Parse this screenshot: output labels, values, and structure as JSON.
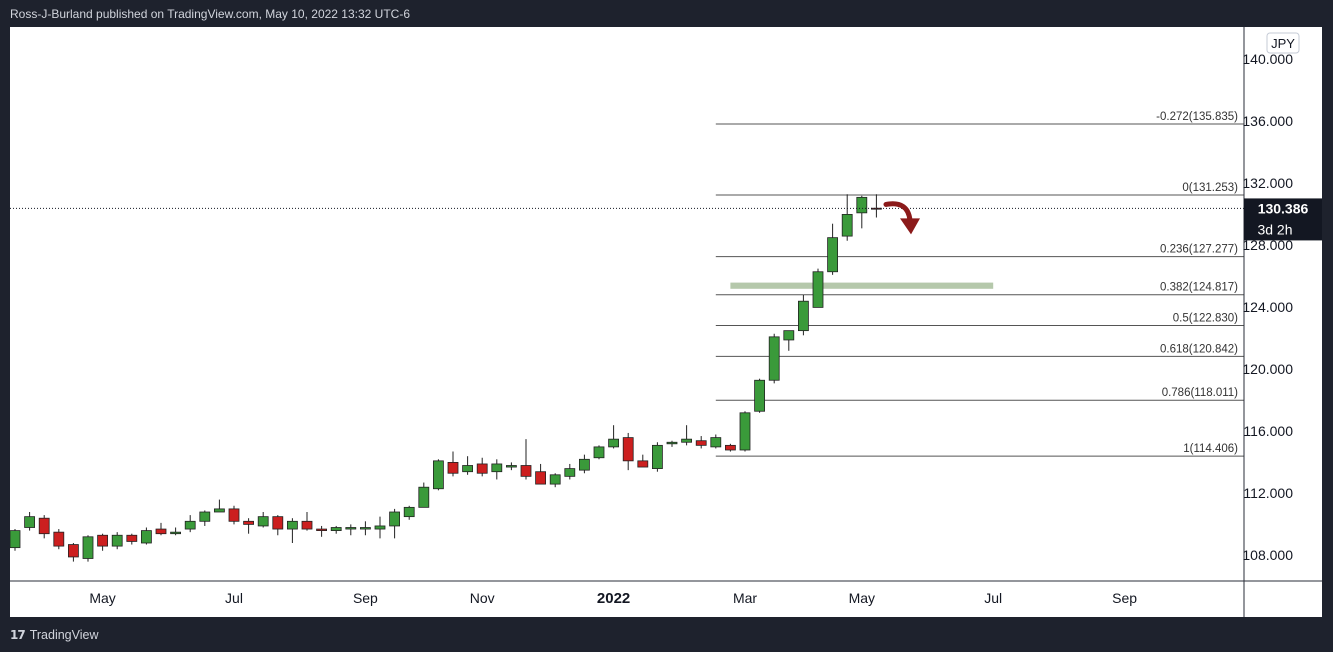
{
  "header": {
    "publisher_text": "Ross-J-Burland published on TradingView.com, May 10, 2022 13:32 UTC-6"
  },
  "footer": {
    "logo_icon": "tradingview-logo-icon",
    "brand": "TradingView"
  },
  "chart_data": {
    "type": "candlestick",
    "currency_label": "JPY",
    "last_price": "130.386",
    "countdown": "3d 2h",
    "ylim": [
      105.0,
      142.5
    ],
    "y_ticks": [
      {
        "value": 108,
        "label": "108.000"
      },
      {
        "value": 112,
        "label": "112.000"
      },
      {
        "value": 116,
        "label": "116.000"
      },
      {
        "value": 120,
        "label": "120.000"
      },
      {
        "value": 124,
        "label": "124.000"
      },
      {
        "value": 128,
        "label": "128.000"
      },
      {
        "value": 132,
        "label": "132.000"
      },
      {
        "value": 136,
        "label": "136.000"
      },
      {
        "value": 140,
        "label": "140.000"
      }
    ],
    "x_ticks": [
      {
        "week": 6,
        "label": "May",
        "bold": false
      },
      {
        "week": 15,
        "label": "Jul",
        "bold": false
      },
      {
        "week": 24,
        "label": "Sep",
        "bold": false
      },
      {
        "week": 32,
        "label": "Nov",
        "bold": false
      },
      {
        "week": 41,
        "label": "2022",
        "bold": true
      },
      {
        "week": 50,
        "label": "Mar",
        "bold": false
      },
      {
        "week": 58,
        "label": "May",
        "bold": false
      },
      {
        "week": 67,
        "label": "Jul",
        "bold": false
      },
      {
        "week": 76,
        "label": "Sep",
        "bold": false
      }
    ],
    "candles": [
      [
        108.5,
        109.7,
        108.3,
        109.6
      ],
      [
        109.8,
        110.8,
        109.6,
        110.5
      ],
      [
        110.4,
        110.6,
        109.1,
        109.4
      ],
      [
        109.5,
        109.7,
        108.4,
        108.6
      ],
      [
        108.7,
        108.8,
        107.6,
        107.9
      ],
      [
        107.8,
        109.3,
        107.6,
        109.2
      ],
      [
        109.3,
        109.4,
        108.3,
        108.6
      ],
      [
        108.6,
        109.5,
        108.4,
        109.3
      ],
      [
        109.3,
        109.4,
        108.7,
        108.9
      ],
      [
        108.8,
        109.8,
        108.7,
        109.6
      ],
      [
        109.7,
        110.1,
        109.3,
        109.4
      ],
      [
        109.4,
        109.8,
        109.3,
        109.5
      ],
      [
        109.7,
        110.6,
        109.5,
        110.2
      ],
      [
        110.2,
        110.9,
        109.9,
        110.8
      ],
      [
        110.8,
        111.6,
        110.8,
        111.0
      ],
      [
        111.0,
        111.2,
        110.0,
        110.2
      ],
      [
        110.2,
        110.4,
        109.4,
        110.0
      ],
      [
        109.9,
        110.8,
        109.8,
        110.5
      ],
      [
        110.5,
        110.6,
        109.3,
        109.7
      ],
      [
        109.7,
        110.4,
        108.8,
        110.2
      ],
      [
        110.2,
        110.8,
        109.6,
        109.7
      ],
      [
        109.7,
        109.9,
        109.2,
        109.6
      ],
      [
        109.6,
        109.9,
        109.4,
        109.8
      ],
      [
        109.7,
        110.0,
        109.3,
        109.8
      ],
      [
        109.7,
        110.2,
        109.3,
        109.8
      ],
      [
        109.7,
        110.5,
        109.1,
        109.9
      ],
      [
        109.9,
        111.0,
        109.1,
        110.8
      ],
      [
        110.5,
        111.2,
        110.3,
        111.1
      ],
      [
        111.1,
        112.7,
        111.1,
        112.4
      ],
      [
        112.3,
        114.2,
        112.2,
        114.1
      ],
      [
        114.0,
        114.7,
        113.1,
        113.3
      ],
      [
        113.4,
        114.4,
        113.2,
        113.8
      ],
      [
        113.9,
        114.3,
        113.1,
        113.3
      ],
      [
        113.4,
        114.2,
        112.9,
        113.9
      ],
      [
        113.7,
        114.0,
        113.5,
        113.8
      ],
      [
        113.8,
        115.5,
        112.9,
        113.1
      ],
      [
        113.4,
        113.9,
        112.6,
        112.6
      ],
      [
        112.6,
        113.3,
        112.4,
        113.2
      ],
      [
        113.1,
        113.9,
        112.9,
        113.6
      ],
      [
        113.5,
        114.5,
        113.3,
        114.2
      ],
      [
        114.3,
        115.1,
        114.2,
        115.0
      ],
      [
        115.0,
        116.4,
        114.9,
        115.5
      ],
      [
        115.6,
        115.9,
        113.5,
        114.1
      ],
      [
        114.1,
        114.5,
        113.8,
        113.7
      ],
      [
        113.6,
        115.3,
        113.4,
        115.1
      ],
      [
        115.2,
        115.4,
        115.0,
        115.3
      ],
      [
        115.3,
        116.4,
        115.1,
        115.5
      ],
      [
        115.4,
        115.7,
        114.9,
        115.1
      ],
      [
        115.0,
        115.8,
        114.9,
        115.6
      ],
      [
        115.1,
        115.2,
        114.7,
        114.8
      ],
      [
        114.8,
        117.3,
        114.7,
        117.2
      ],
      [
        117.3,
        119.4,
        117.2,
        119.3
      ],
      [
        119.3,
        122.3,
        119.1,
        122.1
      ],
      [
        121.9,
        122.4,
        121.2,
        122.5
      ],
      [
        122.5,
        124.8,
        122.2,
        124.4
      ],
      [
        124.0,
        126.5,
        124.0,
        126.3
      ],
      [
        126.3,
        129.4,
        126.1,
        128.5
      ],
      [
        128.6,
        131.3,
        128.3,
        130.0
      ],
      [
        130.1,
        131.2,
        129.1,
        131.1
      ],
      [
        130.4,
        131.3,
        129.8,
        130.386
      ]
    ],
    "fib_levels": [
      {
        "ratio": "-0.272",
        "price": 135.835,
        "label": "-0.272(135.835)"
      },
      {
        "ratio": "0",
        "price": 131.253,
        "label": "0(131.253)"
      },
      {
        "ratio": "0.236",
        "price": 127.277,
        "label": "0.236(127.277)"
      },
      {
        "ratio": "0.382",
        "price": 124.817,
        "label": "0.382(124.817)"
      },
      {
        "ratio": "0.5",
        "price": 122.83,
        "label": "0.5(122.830)"
      },
      {
        "ratio": "0.618",
        "price": 120.842,
        "label": "0.618(120.842)"
      },
      {
        "ratio": "0.786",
        "price": 118.011,
        "label": "0.786(118.011)"
      },
      {
        "ratio": "1",
        "price": 114.406,
        "label": "1(114.406)"
      }
    ],
    "support_zone": {
      "from_week": 49,
      "to_week": 67,
      "low": 125.2,
      "high": 125.6
    },
    "colors": {
      "up": "#3a9a3a",
      "down": "#cc1f1f",
      "border": "#222222",
      "fib_line": "#555555",
      "zone": "#b5c8ab",
      "arrow": "#8b1a1a",
      "price_tag": "#131722",
      "grid_bg": "#ffffff"
    }
  }
}
